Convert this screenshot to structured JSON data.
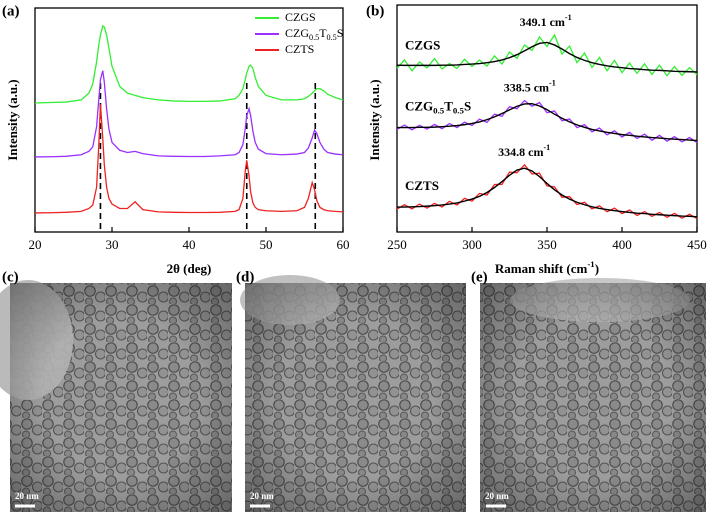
{
  "chart_data": [
    {
      "type": "line",
      "panel": "(a)",
      "x_label": "2θ (deg)",
      "y_label": "Intensity (a.u.)",
      "x": [
        20,
        22,
        24,
        26,
        27,
        27.5,
        28,
        28.3,
        28.5,
        28.8,
        29,
        29.3,
        29.6,
        30,
        31,
        32,
        33,
        34,
        36,
        38,
        40,
        42,
        44,
        46,
        46.5,
        47,
        47.3,
        47.5,
        47.8,
        48,
        48.3,
        48.6,
        49,
        50,
        52,
        54,
        55,
        55.5,
        56,
        56.3,
        56.6,
        57,
        57.5,
        58,
        59,
        60
      ],
      "xlim": [
        20,
        60
      ],
      "xticks": [
        20,
        30,
        40,
        50,
        60
      ],
      "ylim": [
        0,
        100
      ],
      "legend": "upper right",
      "reference_lines": [
        28.5,
        47.5,
        56.4
      ],
      "series": [
        {
          "name": "CZGS",
          "color": "#33ee33",
          "values": [
            57.6,
            57.8,
            58,
            59,
            62,
            66,
            76,
            84,
            88,
            92,
            91.5,
            88,
            82,
            74,
            65,
            62,
            61,
            60,
            59,
            58.5,
            58.3,
            58.3,
            58.5,
            59.5,
            61,
            64,
            68,
            71,
            74,
            74.5,
            73,
            69,
            65,
            61,
            59,
            59,
            59.5,
            60.5,
            62,
            63,
            64,
            64,
            63,
            61.5,
            60,
            59
          ]
        },
        {
          "name": "CZG0.5T0.5S",
          "color": "#9b30ff",
          "values": [
            33.5,
            33.6,
            33.8,
            34.5,
            36,
            38,
            47,
            60,
            68,
            72,
            67,
            55,
            46,
            40,
            36.5,
            35.5,
            36,
            35,
            34,
            33.8,
            33.7,
            33.7,
            34,
            34.5,
            35.5,
            39,
            46,
            52,
            55,
            52,
            45,
            40,
            37,
            35,
            34.5,
            34.8,
            35.5,
            37.5,
            42,
            45.5,
            44,
            40,
            37,
            35.5,
            34.8,
            34.5
          ]
        },
        {
          "name": "CZTS",
          "color": "#ee2222",
          "values": [
            8.5,
            8.6,
            8.8,
            9.2,
            10.5,
            12,
            20,
            40,
            57,
            42,
            30,
            20,
            15,
            12.5,
            10.5,
            10.5,
            13.5,
            10,
            9,
            8.8,
            8.7,
            8.7,
            8.8,
            9.2,
            10,
            15,
            27,
            32,
            25,
            18,
            13,
            11,
            10,
            9.5,
            9.2,
            9.5,
            11,
            15,
            22,
            19,
            14,
            11,
            10,
            9.5,
            9.2,
            9
          ]
        }
      ]
    },
    {
      "type": "line",
      "panel": "(b)",
      "x_label": "Raman shift (cm-1)",
      "y_label": "Intensity (a.u.)",
      "x": [
        250,
        255,
        260,
        265,
        270,
        275,
        280,
        285,
        290,
        295,
        300,
        305,
        310,
        315,
        320,
        325,
        330,
        335,
        340,
        345,
        350,
        355,
        360,
        365,
        370,
        375,
        380,
        385,
        390,
        395,
        400,
        405,
        410,
        415,
        420,
        425,
        430,
        435,
        440,
        445,
        450
      ],
      "xlim": [
        250,
        450
      ],
      "xticks": [
        250,
        300,
        350,
        400,
        450
      ],
      "ylim": [
        0,
        100
      ],
      "series": [
        {
          "name": "CZGS",
          "color": "#33ee33",
          "values": [
            72.1,
            75.8,
            71.0,
            74.9,
            72.3,
            76.4,
            71.8,
            74.2,
            72.0,
            76.1,
            72.9,
            75.7,
            73.1,
            77.6,
            74.0,
            79.3,
            76.5,
            82.4,
            80.0,
            85.9,
            81.7,
            86.8,
            78.4,
            81.9,
            74.6,
            78.8,
            72.5,
            76.9,
            71.0,
            75.6,
            70.2,
            74.4,
            69.9,
            74.1,
            69.4,
            73.5,
            68.8,
            72.9,
            69.0,
            72.4,
            69.3
          ]
        },
        {
          "name": "CZG0.5T0.5S",
          "color": "#9b30ff",
          "values": [
            45.2,
            47.1,
            45.0,
            47.0,
            45.3,
            47.4,
            45.5,
            47.8,
            46.0,
            48.4,
            46.9,
            49.7,
            48.3,
            51.9,
            51.0,
            55.2,
            54.3,
            57.9,
            55.4,
            57.0,
            52.6,
            53.3,
            49.0,
            49.8,
            46.0,
            47.3,
            44.1,
            45.8,
            42.8,
            44.6,
            41.8,
            43.9,
            41.2,
            43.1,
            40.4,
            42.6,
            40.0,
            42.0,
            39.7,
            41.6,
            39.4
          ]
        },
        {
          "name": "CZTS",
          "color": "#ee2222",
          "values": [
            10.1,
            12.0,
            10.2,
            12.3,
            10.5,
            12.6,
            11.0,
            13.5,
            11.9,
            14.8,
            13.6,
            17.0,
            16.3,
            20.9,
            21.0,
            26.4,
            26.1,
            29.6,
            25.6,
            25.9,
            20.3,
            19.9,
            15.3,
            15.6,
            12.1,
            13.1,
            10.2,
            11.5,
            8.9,
            10.5,
            8.1,
            9.7,
            7.3,
            9.0,
            6.9,
            8.6,
            6.5,
            8.2,
            6.1,
            7.8,
            5.9
          ]
        },
        {
          "color": "#000000",
          "values": [
            73.5,
            73.4,
            73.4,
            73.4,
            73.4,
            73.4,
            73.5,
            73.5,
            73.6,
            73.8,
            74.0,
            74.2,
            74.6,
            75.1,
            75.8,
            76.8,
            78.1,
            79.8,
            81.6,
            83.1,
            83.5,
            82.4,
            80.6,
            78.6,
            76.9,
            75.6,
            74.6,
            73.8,
            73.2,
            72.7,
            72.4,
            72.0,
            71.8,
            71.5,
            71.3,
            71.2,
            71.0,
            70.8,
            70.7,
            70.6,
            70.5
          ]
        },
        {
          "color": "#000000",
          "values": [
            46.0,
            46.0,
            46.0,
            46.1,
            46.1,
            46.2,
            46.4,
            46.6,
            46.9,
            47.3,
            47.8,
            48.5,
            49.5,
            50.7,
            52.2,
            53.8,
            55.4,
            56.4,
            56.5,
            55.5,
            53.9,
            51.9,
            50.1,
            48.5,
            47.2,
            46.1,
            45.2,
            44.5,
            43.9,
            43.4,
            42.9,
            42.6,
            42.2,
            41.9,
            41.6,
            41.4,
            41.1,
            40.9,
            40.7,
            40.5,
            40.3
          ]
        },
        {
          "color": "#000000",
          "values": [
            11.0,
            11.0,
            11.1,
            11.2,
            11.4,
            11.6,
            11.9,
            12.3,
            12.8,
            13.6,
            14.5,
            15.7,
            17.4,
            19.6,
            22.2,
            25.0,
            27.3,
            28.1,
            26.9,
            24.4,
            21.4,
            18.6,
            16.3,
            14.5,
            13.1,
            12.0,
            11.1,
            10.4,
            9.9,
            9.4,
            9.0,
            8.6,
            8.3,
            8.1,
            7.8,
            7.6,
            7.4,
            7.2,
            7.0,
            6.9,
            6.7
          ]
        }
      ],
      "annotations": [
        {
          "text": "349.1 cm-1",
          "x": 349.1
        },
        {
          "text": "338.5 cm-1",
          "x": 338.5
        },
        {
          "text": "334.8 cm-1",
          "x": 334.8
        }
      ]
    }
  ],
  "images": [
    {
      "panel": "(c)",
      "scale_bar": "20 nm"
    },
    {
      "panel": "(d)",
      "scale_bar": "20 nm"
    },
    {
      "panel": "(e)",
      "scale_bar": "20 nm"
    }
  ]
}
